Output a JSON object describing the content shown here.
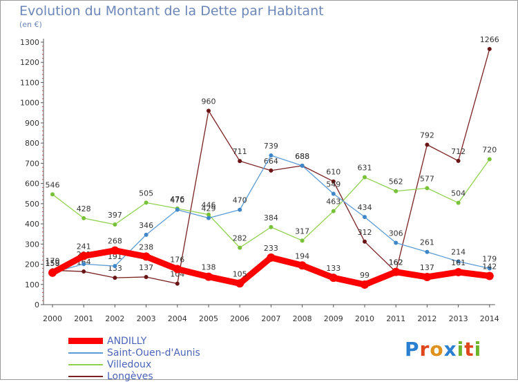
{
  "title": "Evolution du Montant de la Dette par Habitant",
  "subtitle": "(en €)",
  "logo": {
    "text": "Proxiti",
    "letters": [
      "P",
      "r",
      "o",
      "x",
      "i",
      "t",
      "i"
    ],
    "colors": [
      "#2a7fd0",
      "#e0461c",
      "#e0901c",
      "#2a7fd0",
      "#6cb52a",
      "#e0461c",
      "#6cb52a"
    ]
  },
  "chart_data": {
    "type": "line",
    "categories": [
      "2000",
      "2001",
      "2002",
      "2003",
      "2004",
      "2005",
      "2006",
      "2007",
      "2008",
      "2009",
      "2010",
      "2011",
      "2012",
      "2013",
      "2014"
    ],
    "ylim": [
      0,
      1300
    ],
    "yticks": [
      0,
      100,
      200,
      300,
      400,
      500,
      600,
      700,
      800,
      900,
      1000,
      1100,
      1200,
      1300
    ],
    "grid": false,
    "legend_position": "bottom-left",
    "series": [
      {
        "name": "Longèves",
        "color": "#7a2020",
        "marker": "#6a1515",
        "values": [
          170,
          164,
          133,
          137,
          104,
          960,
          711,
          664,
          688,
          610,
          312,
          162,
          792,
          712,
          1266
        ]
      },
      {
        "name": "Villedoux",
        "color": "#8fd14f",
        "marker": "#78c23a",
        "values": [
          546,
          428,
          397,
          505,
          476,
          446,
          282,
          384,
          317,
          463,
          631,
          562,
          577,
          504,
          720
        ]
      },
      {
        "name": "Saint-Ouen-d'Aunis",
        "color": "#5b9bd5",
        "marker": "#3f87c8",
        "values": [
          159,
          201,
          191,
          346,
          470,
          429,
          470,
          739,
          688,
          549,
          434,
          306,
          261,
          214,
          179
        ]
      },
      {
        "name": "ANDILLY",
        "color": "#ff0000",
        "marker": "#ff0000",
        "values": [
          158,
          241,
          268,
          238,
          176,
          138,
          105,
          233,
          194,
          133,
          99,
          162,
          137,
          161,
          142
        ]
      }
    ],
    "legend_order": [
      "ANDILLY",
      "Saint-Ouen-d'Aunis",
      "Villedoux",
      "Longèves"
    ]
  }
}
